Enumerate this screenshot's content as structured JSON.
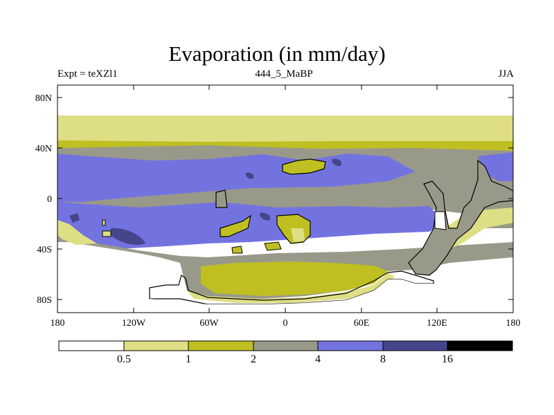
{
  "title": "Evaporation (in mm/day)",
  "subtitle_left": "Expt = teXZl1",
  "subtitle_center": "444_5_MaBP",
  "subtitle_right": "JJA",
  "map": {
    "lat_ticks": [
      "80N",
      "40N",
      "0",
      "40S",
      "80S"
    ],
    "lon_ticks": [
      "180",
      "120W",
      "60W",
      "0",
      "60E",
      "120E",
      "180"
    ]
  },
  "colorbar": {
    "labels": [
      "0.5",
      "1",
      "2",
      "4",
      "8",
      "16"
    ],
    "colors": [
      "#ffffff",
      "#dede84",
      "#bfbf22",
      "#99998a",
      "#7373e0",
      "#45458c",
      "#000000"
    ]
  }
}
